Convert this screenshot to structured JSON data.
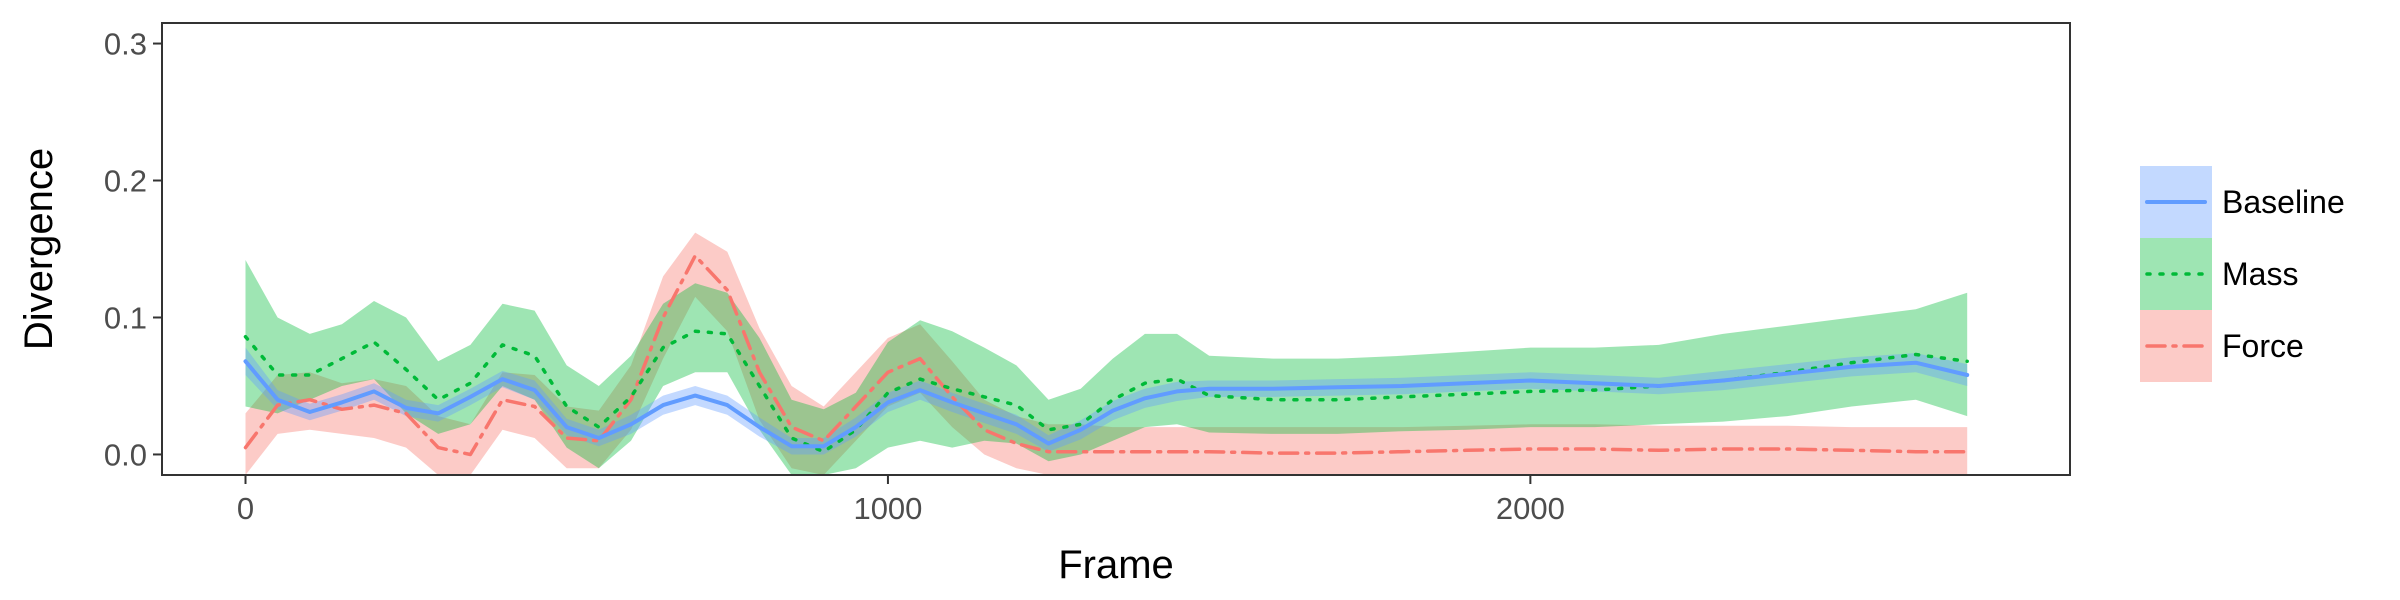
{
  "chart_data": {
    "type": "line",
    "title": "",
    "xlabel": "Frame",
    "ylabel": "Divergence",
    "xlim": [
      -130,
      2840
    ],
    "ylim": [
      -0.015,
      0.315
    ],
    "x_ticks": [
      0,
      1000,
      2000
    ],
    "y_ticks": [
      0.0,
      0.1,
      0.2,
      0.3
    ],
    "x_tick_labels": [
      "0",
      "1000",
      "2000"
    ],
    "y_tick_labels": [
      "0.0",
      "0.1",
      "0.2",
      "0.3"
    ],
    "grid": false,
    "legend_position": "right",
    "x": [
      0,
      50,
      100,
      150,
      200,
      250,
      300,
      350,
      400,
      450,
      500,
      550,
      600,
      650,
      700,
      750,
      800,
      850,
      900,
      950,
      1000,
      1050,
      1100,
      1150,
      1200,
      1250,
      1300,
      1350,
      1400,
      1450,
      1500,
      1600,
      1700,
      1800,
      1900,
      2000,
      2100,
      2200,
      2300,
      2400,
      2500,
      2600,
      2680
    ],
    "series": [
      {
        "name": "Baseline",
        "color": "#619CFF",
        "line": "solid",
        "values": [
          0.068,
          0.04,
          0.031,
          0.038,
          0.046,
          0.034,
          0.03,
          0.042,
          0.055,
          0.047,
          0.02,
          0.012,
          0.022,
          0.036,
          0.043,
          0.036,
          0.02,
          0.006,
          0.006,
          0.02,
          0.038,
          0.047,
          0.038,
          0.03,
          0.022,
          0.008,
          0.018,
          0.032,
          0.041,
          0.046,
          0.048,
          0.048,
          0.049,
          0.05,
          0.052,
          0.054,
          0.052,
          0.05,
          0.054,
          0.059,
          0.064,
          0.067,
          0.058
        ],
        "lower": [
          0.058,
          0.033,
          0.025,
          0.032,
          0.04,
          0.028,
          0.024,
          0.036,
          0.049,
          0.04,
          0.014,
          0.006,
          0.015,
          0.029,
          0.036,
          0.029,
          0.013,
          0.0,
          0.0,
          0.013,
          0.031,
          0.04,
          0.031,
          0.023,
          0.015,
          0.002,
          0.011,
          0.025,
          0.034,
          0.039,
          0.042,
          0.042,
          0.043,
          0.044,
          0.046,
          0.048,
          0.046,
          0.044,
          0.047,
          0.052,
          0.057,
          0.06,
          0.05
        ],
        "upper": [
          0.078,
          0.047,
          0.037,
          0.044,
          0.052,
          0.04,
          0.036,
          0.048,
          0.061,
          0.054,
          0.026,
          0.018,
          0.029,
          0.043,
          0.05,
          0.043,
          0.027,
          0.012,
          0.012,
          0.027,
          0.045,
          0.054,
          0.045,
          0.037,
          0.029,
          0.014,
          0.025,
          0.039,
          0.048,
          0.053,
          0.054,
          0.054,
          0.055,
          0.056,
          0.058,
          0.06,
          0.058,
          0.056,
          0.061,
          0.066,
          0.071,
          0.074,
          0.066
        ]
      },
      {
        "name": "Mass",
        "color": "#00BA38",
        "line": "dotted",
        "values": [
          0.086,
          0.058,
          0.058,
          0.07,
          0.082,
          0.062,
          0.04,
          0.052,
          0.08,
          0.072,
          0.035,
          0.02,
          0.042,
          0.078,
          0.09,
          0.088,
          0.05,
          0.012,
          0.002,
          0.018,
          0.045,
          0.055,
          0.048,
          0.042,
          0.036,
          0.018,
          0.022,
          0.04,
          0.052,
          0.055,
          0.043,
          0.04,
          0.04,
          0.042,
          0.044,
          0.046,
          0.047,
          0.05,
          0.054,
          0.06,
          0.067,
          0.073,
          0.068
        ],
        "lower": [
          0.035,
          0.03,
          0.04,
          0.05,
          0.055,
          0.03,
          0.015,
          0.022,
          0.05,
          0.04,
          0.005,
          -0.01,
          0.01,
          0.05,
          0.06,
          0.06,
          0.018,
          -0.015,
          -0.015,
          -0.01,
          0.005,
          0.01,
          0.005,
          0.01,
          0.008,
          -0.005,
          0.0,
          0.01,
          0.02,
          0.022,
          0.016,
          0.015,
          0.015,
          0.017,
          0.018,
          0.02,
          0.02,
          0.022,
          0.024,
          0.028,
          0.035,
          0.04,
          0.028
        ],
        "upper": [
          0.142,
          0.1,
          0.088,
          0.095,
          0.112,
          0.1,
          0.068,
          0.08,
          0.11,
          0.105,
          0.065,
          0.05,
          0.072,
          0.11,
          0.125,
          0.118,
          0.085,
          0.04,
          0.033,
          0.045,
          0.082,
          0.098,
          0.09,
          0.078,
          0.065,
          0.04,
          0.048,
          0.07,
          0.088,
          0.088,
          0.072,
          0.07,
          0.07,
          0.072,
          0.075,
          0.078,
          0.078,
          0.08,
          0.088,
          0.094,
          0.1,
          0.106,
          0.118
        ]
      },
      {
        "name": "Force",
        "color": "#F8766D",
        "line": "dashdot",
        "values": [
          0.005,
          0.036,
          0.04,
          0.033,
          0.036,
          0.03,
          0.005,
          0.0,
          0.04,
          0.035,
          0.012,
          0.01,
          0.04,
          0.1,
          0.145,
          0.12,
          0.06,
          0.02,
          0.01,
          0.035,
          0.06,
          0.07,
          0.042,
          0.018,
          0.008,
          0.002,
          0.002,
          0.002,
          0.002,
          0.002,
          0.002,
          0.001,
          0.001,
          0.002,
          0.003,
          0.004,
          0.004,
          0.003,
          0.004,
          0.004,
          0.003,
          0.002,
          0.002
        ],
        "lower": [
          -0.015,
          0.015,
          0.018,
          0.015,
          0.012,
          0.005,
          -0.015,
          -0.015,
          0.018,
          0.012,
          -0.01,
          -0.01,
          0.018,
          0.07,
          0.115,
          0.09,
          0.025,
          -0.01,
          -0.015,
          0.01,
          0.035,
          0.045,
          0.02,
          0.0,
          -0.01,
          -0.015,
          -0.015,
          -0.015,
          -0.015,
          -0.015,
          -0.015,
          -0.015,
          -0.015,
          -0.015,
          -0.015,
          -0.015,
          -0.015,
          -0.015,
          -0.015,
          -0.015,
          -0.015,
          -0.015,
          -0.015
        ],
        "upper": [
          0.03,
          0.058,
          0.06,
          0.052,
          0.055,
          0.05,
          0.028,
          0.022,
          0.06,
          0.058,
          0.035,
          0.032,
          0.065,
          0.13,
          0.162,
          0.148,
          0.092,
          0.05,
          0.035,
          0.06,
          0.085,
          0.095,
          0.068,
          0.04,
          0.028,
          0.022,
          0.022,
          0.02,
          0.02,
          0.02,
          0.02,
          0.02,
          0.02,
          0.02,
          0.021,
          0.022,
          0.022,
          0.021,
          0.021,
          0.021,
          0.02,
          0.02,
          0.02
        ]
      }
    ]
  }
}
